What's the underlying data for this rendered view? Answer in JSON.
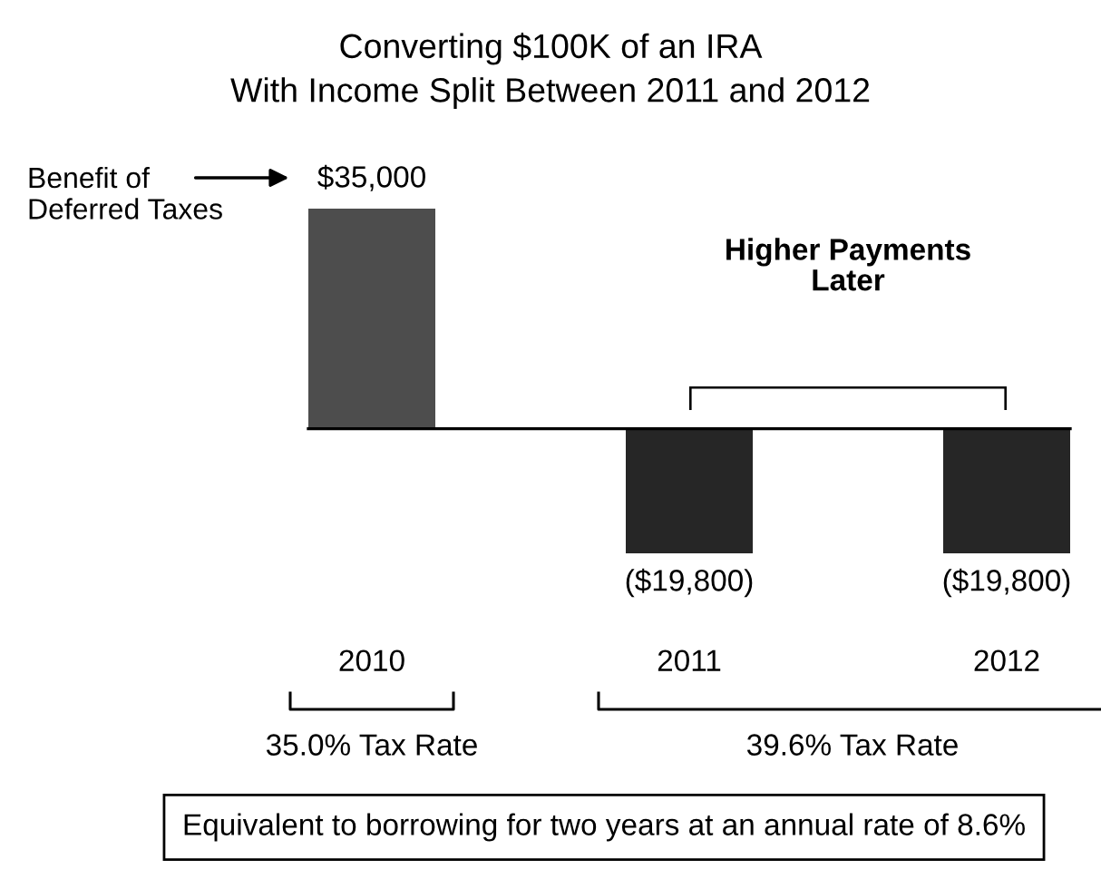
{
  "chart_data": {
    "type": "bar",
    "title": "Converting $100K of an IRA\nWith Income Split Between 2011 and 2012",
    "categories": [
      "2010",
      "2011",
      "2012"
    ],
    "values": [
      35000,
      -19800,
      -19800
    ],
    "colors": [
      "#4d4d4d",
      "#262626",
      "#262626"
    ],
    "value_labels": [
      "$35,000",
      "($19,800)",
      "($19,800)"
    ],
    "annotations": [
      "Benefit of\nDeferred Taxes",
      "Higher Payments\nLater",
      "35.0% Tax Rate",
      "39.6% Tax Rate",
      "Equivalent to borrowing for two years at an annual rate of 8.6%"
    ],
    "grid": false,
    "legend": false
  }
}
